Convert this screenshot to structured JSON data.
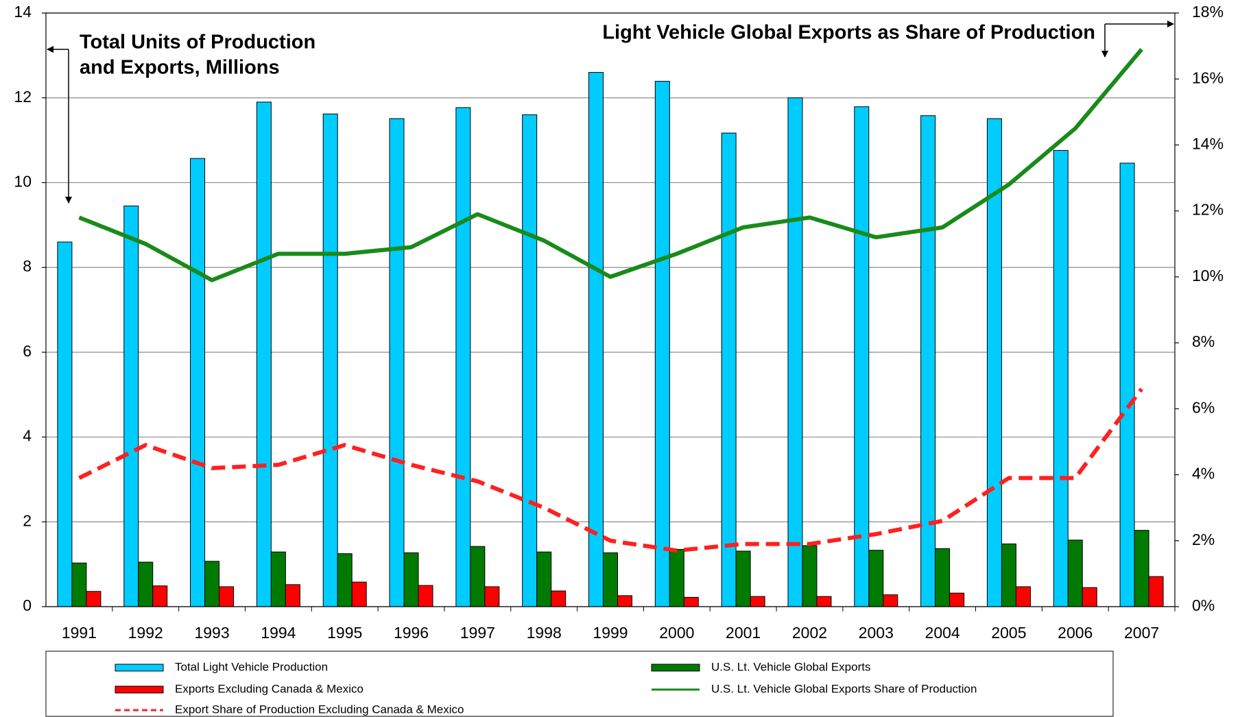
{
  "chart_data": {
    "type": "bar",
    "y_label_lines": [
      "Total Units of Production",
      "and Exports, Millions"
    ],
    "y2_label": "Light Vehicle Global Exports as Share of Production",
    "categories": [
      "1991",
      "1992",
      "1993",
      "1994",
      "1995",
      "1996",
      "1997",
      "1998",
      "1999",
      "2000",
      "2001",
      "2002",
      "2003",
      "2004",
      "2005",
      "2006",
      "2007"
    ],
    "series": [
      {
        "name": "Total Light Vehicle Production",
        "type": "bar",
        "color": "#00ccff",
        "values": [
          8.6,
          9.45,
          10.57,
          11.9,
          11.62,
          11.51,
          11.77,
          11.6,
          12.6,
          12.39,
          11.17,
          12.0,
          11.79,
          11.58,
          11.51,
          10.76,
          10.46
        ]
      },
      {
        "name": "U.S. Lt. Vehicle Global Exports",
        "type": "bar",
        "color": "#007a00",
        "values": [
          1.03,
          1.05,
          1.07,
          1.29,
          1.25,
          1.27,
          1.42,
          1.29,
          1.27,
          1.35,
          1.31,
          1.44,
          1.33,
          1.37,
          1.48,
          1.57,
          1.8
        ]
      },
      {
        "name": "Exports Excluding Canada & Mexico",
        "type": "bar",
        "color": "#ff0000",
        "values": [
          0.36,
          0.49,
          0.47,
          0.52,
          0.58,
          0.5,
          0.47,
          0.37,
          0.26,
          0.22,
          0.24,
          0.24,
          0.28,
          0.32,
          0.47,
          0.45,
          0.71
        ]
      },
      {
        "name": "U.S. Lt. Vehicle Global Exports Share of Production",
        "type": "line",
        "axis": "y2",
        "color": "#1a8a1a",
        "line_style": "solid",
        "values": [
          11.8,
          11.0,
          9.9,
          10.7,
          10.7,
          10.9,
          11.9,
          11.1,
          10.0,
          10.7,
          11.5,
          11.8,
          11.2,
          11.5,
          12.8,
          14.5,
          16.9
        ]
      },
      {
        "name": "Export Share of Production Excluding Canada & Mexico",
        "type": "line",
        "axis": "y2",
        "color": "#ff2020",
        "line_style": "dashed",
        "values": [
          3.9,
          4.9,
          4.2,
          4.3,
          4.9,
          4.3,
          3.8,
          3.0,
          2.0,
          1.7,
          1.9,
          1.9,
          2.2,
          2.6,
          3.9,
          3.9,
          6.6
        ]
      }
    ],
    "ylim": [
      0,
      14
    ],
    "yticks": [
      0,
      2,
      4,
      6,
      8,
      10,
      12,
      14
    ],
    "y2lim": [
      0,
      18
    ],
    "y2ticks": [
      {
        "value": 0,
        "label": "0%"
      },
      {
        "value": 2,
        "label": "2%"
      },
      {
        "value": 4,
        "label": "4%"
      },
      {
        "value": 6,
        "label": "6%"
      },
      {
        "value": 8,
        "label": "8%"
      },
      {
        "value": 10,
        "label": "10%"
      },
      {
        "value": 12,
        "label": "12%"
      },
      {
        "value": 14,
        "label": "14%"
      },
      {
        "value": 16,
        "label": "16%"
      },
      {
        "value": 18,
        "label": "18%"
      }
    ],
    "grid": true,
    "legend": "bottom"
  }
}
